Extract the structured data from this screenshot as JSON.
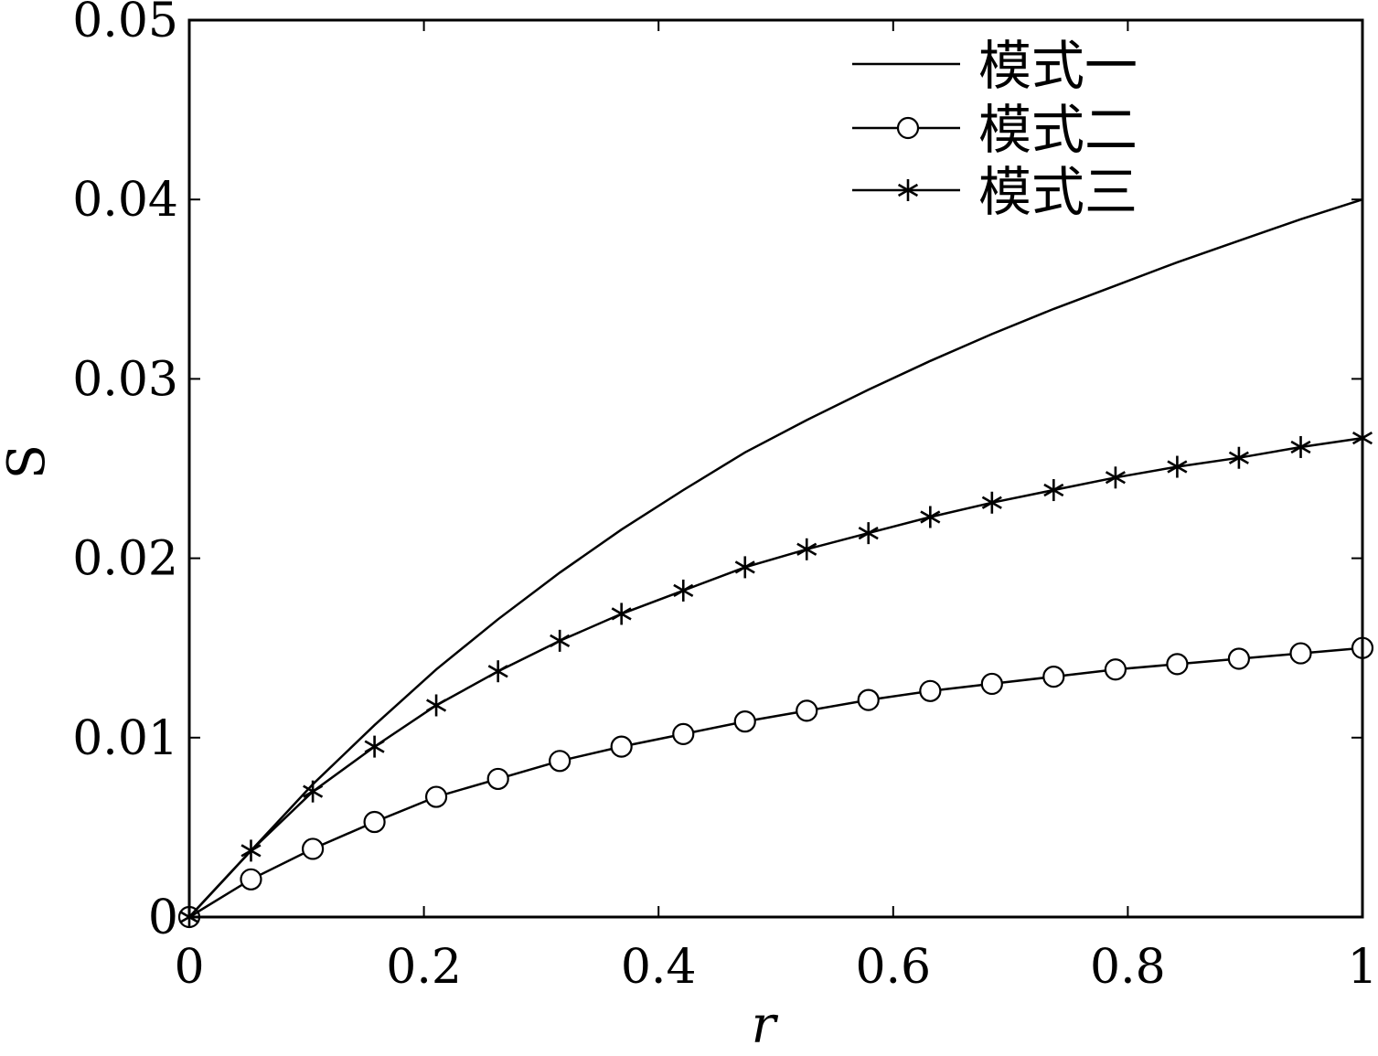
{
  "chart_data": {
    "type": "line",
    "title": "",
    "xlabel": "r",
    "ylabel": "S",
    "xlim": [
      0,
      1
    ],
    "ylim": [
      0,
      0.05
    ],
    "xticks": [
      "0",
      "0.2",
      "0.4",
      "0.6",
      "0.8",
      "1"
    ],
    "yticks": [
      "0",
      "0.01",
      "0.02",
      "0.03",
      "0.04",
      "0.05"
    ],
    "grid": false,
    "legend_position": "top-right",
    "x": [
      0,
      0.0526,
      0.1053,
      0.1579,
      0.2105,
      0.2632,
      0.3158,
      0.3684,
      0.4211,
      0.4737,
      0.5263,
      0.5789,
      0.6316,
      0.6842,
      0.7368,
      0.7895,
      0.8421,
      0.8947,
      0.9474,
      1.0
    ],
    "series": [
      {
        "name": "模式一",
        "marker": "none",
        "values": [
          0,
          0.0037,
          0.0074,
          0.0107,
          0.0138,
          0.0166,
          0.0192,
          0.0216,
          0.0238,
          0.0259,
          0.0277,
          0.0294,
          0.031,
          0.0325,
          0.0339,
          0.0352,
          0.0365,
          0.0377,
          0.0389,
          0.04
        ]
      },
      {
        "name": "模式二",
        "marker": "circle",
        "values": [
          0,
          0.0021,
          0.0038,
          0.0053,
          0.0067,
          0.0077,
          0.0087,
          0.0095,
          0.0102,
          0.0109,
          0.0115,
          0.0121,
          0.0126,
          0.013,
          0.0134,
          0.0138,
          0.0141,
          0.0144,
          0.0147,
          0.015
        ]
      },
      {
        "name": "模式三",
        "marker": "star",
        "values": [
          0,
          0.0037,
          0.007,
          0.0095,
          0.0118,
          0.0137,
          0.0154,
          0.0169,
          0.0182,
          0.0195,
          0.0205,
          0.0214,
          0.0223,
          0.0231,
          0.0238,
          0.0245,
          0.0251,
          0.0256,
          0.0262,
          0.0267
        ]
      }
    ]
  }
}
